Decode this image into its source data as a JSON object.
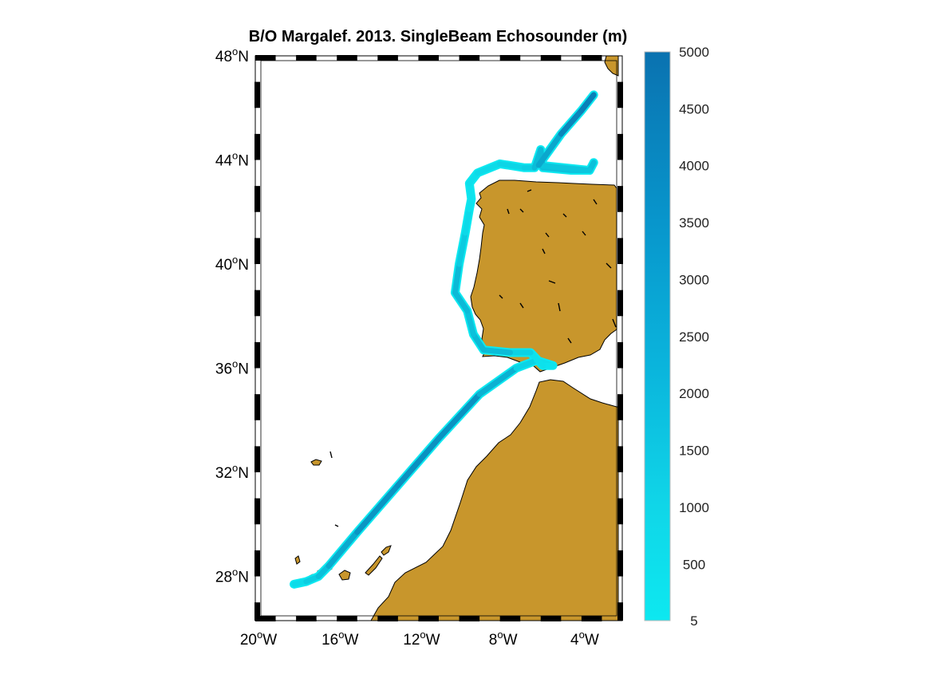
{
  "title": "B/O Margalef. 2013. SingleBeam Echosounder (m)",
  "colors": {
    "land": "#c8962c",
    "coast": "#000000",
    "track_shallow": "#0de8f0",
    "track_deep": "#0a72b0",
    "frame": "#000000"
  },
  "map": {
    "lon_range": [
      -20,
      -2
    ],
    "lat_range": [
      26.3,
      48
    ],
    "lon_ticks": [
      {
        "value": -20,
        "label": "20",
        "sup": "o",
        "hemi": "W"
      },
      {
        "value": -16,
        "label": "16",
        "sup": "o",
        "hemi": "W"
      },
      {
        "value": -12,
        "label": "12",
        "sup": "o",
        "hemi": "W"
      },
      {
        "value": -8,
        "label": "8",
        "sup": "o",
        "hemi": "W"
      },
      {
        "value": -4,
        "label": "4",
        "sup": "o",
        "hemi": "W"
      }
    ],
    "lat_ticks": [
      {
        "value": 48,
        "label": "48",
        "sup": "o",
        "hemi": "N"
      },
      {
        "value": 44,
        "label": "44",
        "sup": "o",
        "hemi": "N"
      },
      {
        "value": 40,
        "label": "40",
        "sup": "o",
        "hemi": "N"
      },
      {
        "value": 36,
        "label": "36",
        "sup": "o",
        "hemi": "N"
      },
      {
        "value": 32,
        "label": "32",
        "sup": "o",
        "hemi": "N"
      },
      {
        "value": 28,
        "label": "28",
        "sup": "o",
        "hemi": "N"
      }
    ]
  },
  "colorbar": {
    "range": [
      5,
      5000
    ],
    "ticks": [
      {
        "value": 5000,
        "label": "5000"
      },
      {
        "value": 4500,
        "label": "4500"
      },
      {
        "value": 4000,
        "label": "4000"
      },
      {
        "value": 3500,
        "label": "3500"
      },
      {
        "value": 3000,
        "label": "3000"
      },
      {
        "value": 2500,
        "label": "2500"
      },
      {
        "value": 2000,
        "label": "2000"
      },
      {
        "value": 1500,
        "label": "1500"
      },
      {
        "value": 1000,
        "label": "1000"
      },
      {
        "value": 500,
        "label": "500"
      },
      {
        "value": 5,
        "label": "5"
      }
    ]
  },
  "track": [
    {
      "lon": -18.1,
      "lat": 27.7,
      "depth": 300
    },
    {
      "lon": -17.5,
      "lat": 27.8,
      "depth": 800
    },
    {
      "lon": -16.9,
      "lat": 28.0,
      "depth": 1500
    },
    {
      "lon": -16.4,
      "lat": 28.4,
      "depth": 2000
    },
    {
      "lon": -15.0,
      "lat": 29.7,
      "depth": 3300
    },
    {
      "lon": -13.0,
      "lat": 31.5,
      "depth": 3700
    },
    {
      "lon": -11.0,
      "lat": 33.3,
      "depth": 3800
    },
    {
      "lon": -9.0,
      "lat": 35.0,
      "depth": 3500
    },
    {
      "lon": -7.2,
      "lat": 36.0,
      "depth": 1200
    },
    {
      "lon": -6.2,
      "lat": 36.3,
      "depth": 600
    },
    {
      "lon": -5.4,
      "lat": 36.1,
      "depth": 200
    },
    {
      "lon": -5.9,
      "lat": 36.1,
      "depth": 200
    },
    {
      "lon": -6.5,
      "lat": 36.6,
      "depth": 400
    },
    {
      "lon": -7.5,
      "lat": 36.6,
      "depth": 1500
    },
    {
      "lon": -8.8,
      "lat": 36.7,
      "depth": 2200
    },
    {
      "lon": -9.3,
      "lat": 37.3,
      "depth": 1800
    },
    {
      "lon": -9.6,
      "lat": 38.2,
      "depth": 1500
    },
    {
      "lon": -10.2,
      "lat": 38.9,
      "depth": 2400
    },
    {
      "lon": -10.0,
      "lat": 40.0,
      "depth": 1600
    },
    {
      "lon": -9.7,
      "lat": 41.2,
      "depth": 900
    },
    {
      "lon": -9.5,
      "lat": 42.1,
      "depth": 400
    },
    {
      "lon": -9.4,
      "lat": 42.5,
      "depth": 200
    },
    {
      "lon": -9.5,
      "lat": 43.1,
      "depth": 300
    },
    {
      "lon": -9.1,
      "lat": 43.5,
      "depth": 500
    },
    {
      "lon": -8.0,
      "lat": 43.85,
      "depth": 700
    },
    {
      "lon": -6.8,
      "lat": 43.7,
      "depth": 900
    },
    {
      "lon": -6.3,
      "lat": 43.7,
      "depth": 1200
    },
    {
      "lon": -6.0,
      "lat": 44.4,
      "depth": 2500
    },
    {
      "lon": -5.9,
      "lat": 43.7,
      "depth": 1500
    },
    {
      "lon": -4.5,
      "lat": 43.6,
      "depth": 1800
    },
    {
      "lon": -3.6,
      "lat": 43.6,
      "depth": 1400
    },
    {
      "lon": -3.4,
      "lat": 43.9,
      "depth": 2000
    },
    {
      "lon": -3.6,
      "lat": 43.6,
      "depth": 1400
    },
    {
      "lon": -6.1,
      "lat": 43.8,
      "depth": 1500
    },
    {
      "lon": -5.0,
      "lat": 45.0,
      "depth": 4000
    },
    {
      "lon": -4.0,
      "lat": 45.9,
      "depth": 4300
    },
    {
      "lon": -3.4,
      "lat": 46.5,
      "depth": 4500
    }
  ]
}
